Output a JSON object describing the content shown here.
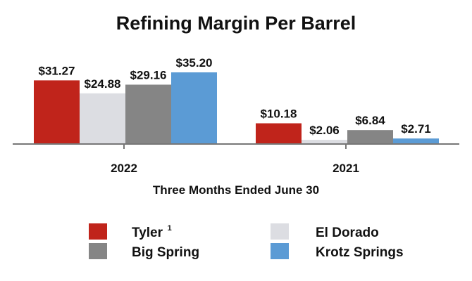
{
  "chart_data": {
    "type": "bar",
    "title": "Refining Margin Per Barrel",
    "xlabel": "Three Months Ended June 30",
    "ylabel": "",
    "categories": [
      "2022",
      "2021"
    ],
    "series": [
      {
        "name": "Tyler",
        "footnote": "1",
        "color": "#c0241b",
        "values": [
          31.27,
          10.18
        ],
        "labels": [
          "$31.27",
          "$10.18"
        ]
      },
      {
        "name": "El Dorado",
        "color": "#dcdde2",
        "values": [
          24.88,
          2.06
        ],
        "labels": [
          "$24.88",
          "$2.06"
        ]
      },
      {
        "name": "Big Spring",
        "color": "#858585",
        "values": [
          29.16,
          6.84
        ],
        "labels": [
          "$29.16",
          "$6.84"
        ]
      },
      {
        "name": "Krotz Springs",
        "color": "#5b9bd5",
        "values": [
          35.2,
          2.71
        ],
        "labels": [
          "$35.20",
          "$2.71"
        ]
      }
    ],
    "ylim": [
      0,
      35.2
    ],
    "grid": false,
    "legend": "bottom"
  }
}
